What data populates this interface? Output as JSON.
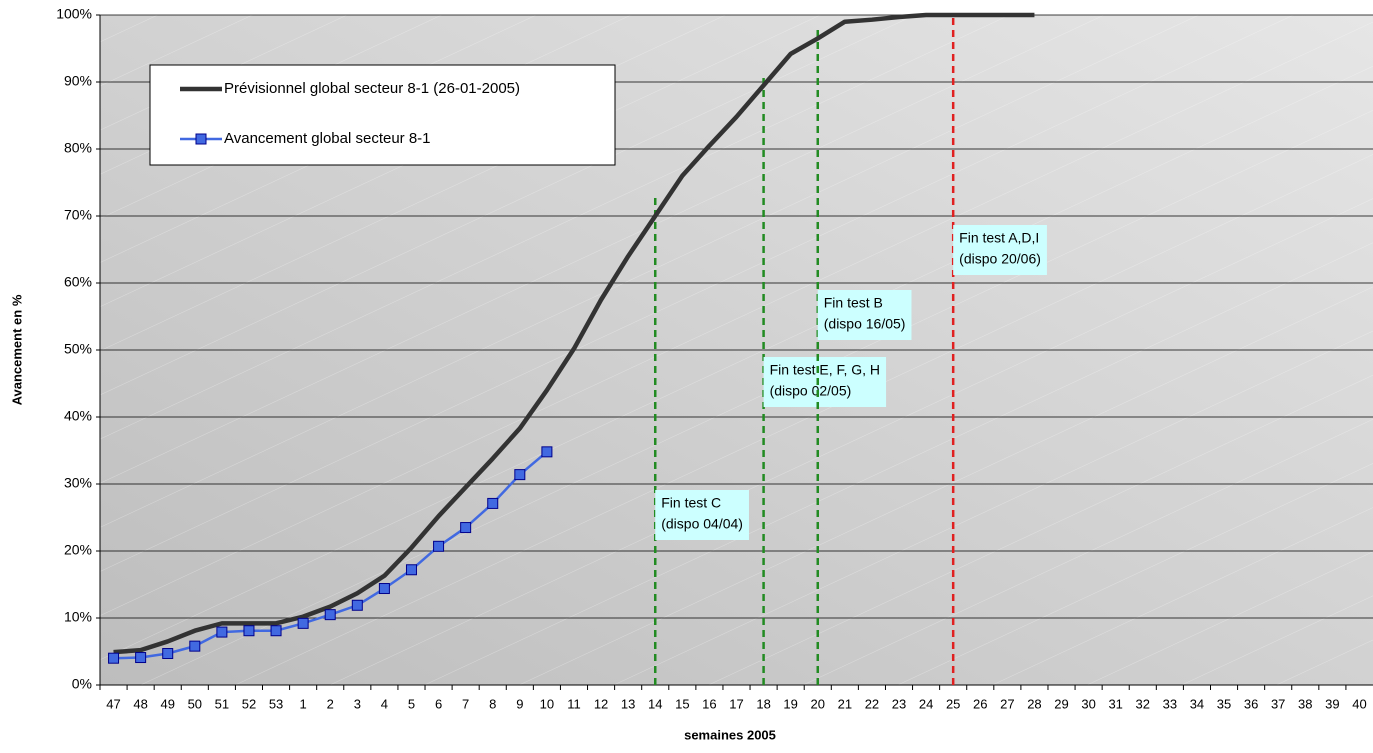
{
  "chart_data": {
    "type": "line",
    "x_label": "semaines  2005",
    "y_label": "Avancement en %",
    "categories": [
      "47",
      "48",
      "49",
      "50",
      "51",
      "52",
      "53",
      "1",
      "2",
      "3",
      "4",
      "5",
      "6",
      "7",
      "8",
      "9",
      "10",
      "11",
      "12",
      "13",
      "14",
      "15",
      "16",
      "17",
      "18",
      "19",
      "20",
      "21",
      "22",
      "23",
      "24",
      "25",
      "26",
      "27",
      "28",
      "29",
      "30",
      "31",
      "32",
      "33",
      "34",
      "35",
      "36",
      "37",
      "38",
      "39",
      "40"
    ],
    "series": [
      {
        "name": "Prévisionnel global secteur 8-1 (26-01-2005)",
        "color": "#333333",
        "marker": false,
        "values": [
          4.9,
          5.2,
          6.5,
          8.1,
          9.2,
          9.2,
          9.2,
          10.2,
          11.7,
          13.7,
          16.3,
          20.5,
          25.2,
          29.5,
          33.8,
          38.3,
          44,
          50.2,
          57.5,
          64,
          70,
          76,
          80.5,
          84.8,
          89.5,
          94.2,
          96.5,
          99,
          99.3,
          99.7,
          100,
          100,
          100,
          100,
          100,
          null,
          null,
          null,
          null,
          null,
          null,
          null,
          null,
          null,
          null,
          null,
          null
        ]
      },
      {
        "name": "Avancement global secteur 8-1",
        "color": "#4169e1",
        "marker": true,
        "values": [
          4.0,
          4.1,
          4.7,
          5.8,
          7.9,
          8.1,
          8.1,
          9.2,
          10.5,
          11.9,
          14.4,
          17.2,
          20.7,
          23.5,
          27.1,
          31.4,
          34.8,
          null,
          null,
          null,
          null,
          null,
          null,
          null,
          null,
          null,
          null,
          null,
          null,
          null,
          null,
          null,
          null,
          null,
          null,
          null,
          null,
          null,
          null,
          null,
          null,
          null,
          null,
          null,
          null,
          null,
          null
        ]
      }
    ],
    "ylim": [
      0,
      100
    ],
    "yticks": [
      {
        "value": 0,
        "label": "0%"
      },
      {
        "value": 10,
        "label": "10%"
      },
      {
        "value": 20,
        "label": "20%"
      },
      {
        "value": 30,
        "label": "30%"
      },
      {
        "value": 40,
        "label": "40%"
      },
      {
        "value": 50,
        "label": "50%"
      },
      {
        "value": 60,
        "label": "60%"
      },
      {
        "value": 70,
        "label": "70%"
      },
      {
        "value": 80,
        "label": "80%"
      },
      {
        "value": 90,
        "label": "90%"
      },
      {
        "value": 100,
        "label": "100%"
      }
    ],
    "grid": true,
    "legend": "upper left",
    "annotations": [
      {
        "category": "14",
        "color": "#228b22",
        "y_end": 73,
        "lines": [
          "Fin test C",
          "(dispo 04/04)"
        ]
      },
      {
        "category": "18",
        "color": "#228b22",
        "y_end": 91,
        "lines": [
          "Fin test E, F, G, H",
          "(dispo  02/05)"
        ]
      },
      {
        "category": "20",
        "color": "#228b22",
        "y_end": 98,
        "lines": [
          "Fin test B",
          "(dispo 16/05)"
        ]
      },
      {
        "category": "25",
        "color": "#e02020",
        "y_end": 100,
        "lines": [
          "Fin test A,D,I",
          "(dispo 20/06)"
        ]
      }
    ]
  }
}
